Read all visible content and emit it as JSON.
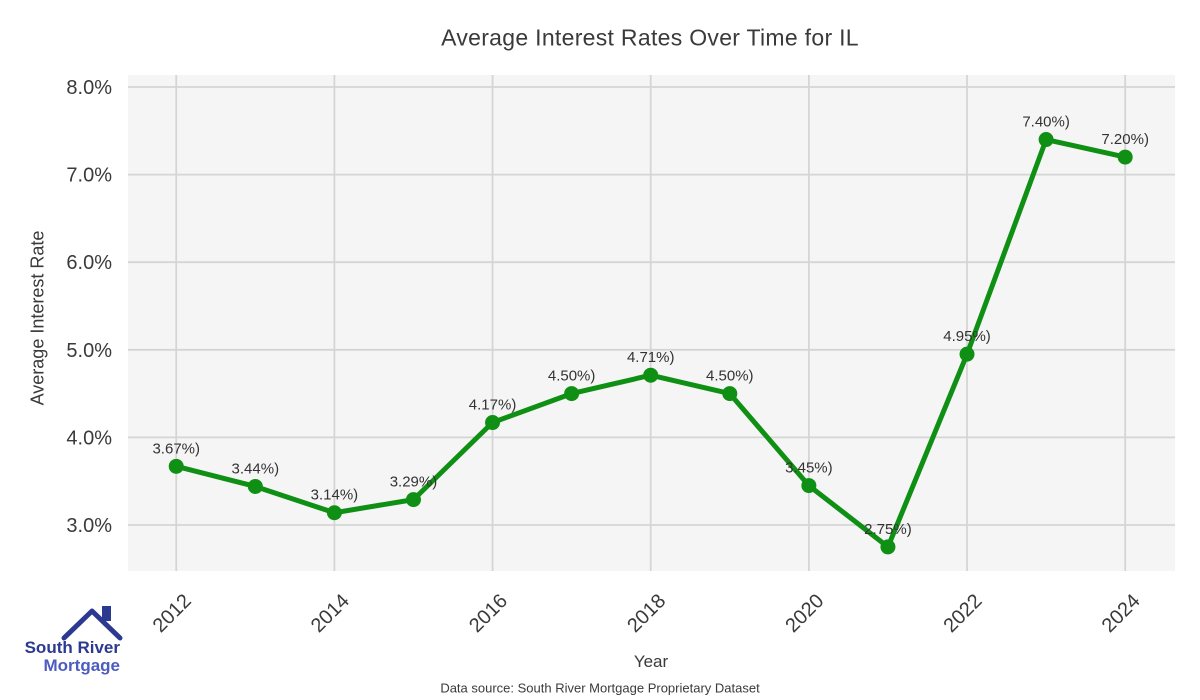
{
  "chart_data": {
    "type": "line",
    "title": "Average Interest Rates Over Time for IL",
    "xlabel": "Year",
    "ylabel": "Average Interest Rate",
    "x": [
      2012,
      2013,
      2014,
      2015,
      2016,
      2017,
      2018,
      2019,
      2020,
      2021,
      2022,
      2023,
      2024
    ],
    "values": [
      3.67,
      3.44,
      3.14,
      3.29,
      4.17,
      4.5,
      4.71,
      4.5,
      3.45,
      2.75,
      4.95,
      7.4,
      7.2
    ],
    "point_labels": [
      "3.67%)",
      "3.44%)",
      "3.14%)",
      "3.29%)",
      "4.17%)",
      "4.50%)",
      "4.71%)",
      "4.50%)",
      "3.45%)",
      "2.75%)",
      "4.95%)",
      "7.40%)",
      "7.20%)"
    ],
    "x_ticks": [
      2012,
      2014,
      2016,
      2018,
      2020,
      2022,
      2024
    ],
    "y_ticks": [
      3,
      4,
      5,
      6,
      7,
      8
    ],
    "y_tick_labels": [
      "3.0%",
      "4.0%",
      "5.0%",
      "6.0%",
      "7.0%",
      "8.0%"
    ],
    "xlim": [
      2011.39,
      2024.63
    ],
    "ylim": [
      2.475,
      8.137
    ],
    "grid": true,
    "legend": "none",
    "line_color": "#0f9014",
    "marker_color": "#0f9014",
    "plot_bg": "#f5f5f5",
    "grid_color": "#d5d5d5",
    "tick_color": "#3a3a3a",
    "label_color": "#333333"
  },
  "footer": {
    "text": "Data source: South River Mortgage Proprietary Dataset"
  },
  "logo": {
    "line1": "South River",
    "line2": "Mortgage",
    "color1": "#2b3990",
    "color2": "#4d5cc0"
  }
}
